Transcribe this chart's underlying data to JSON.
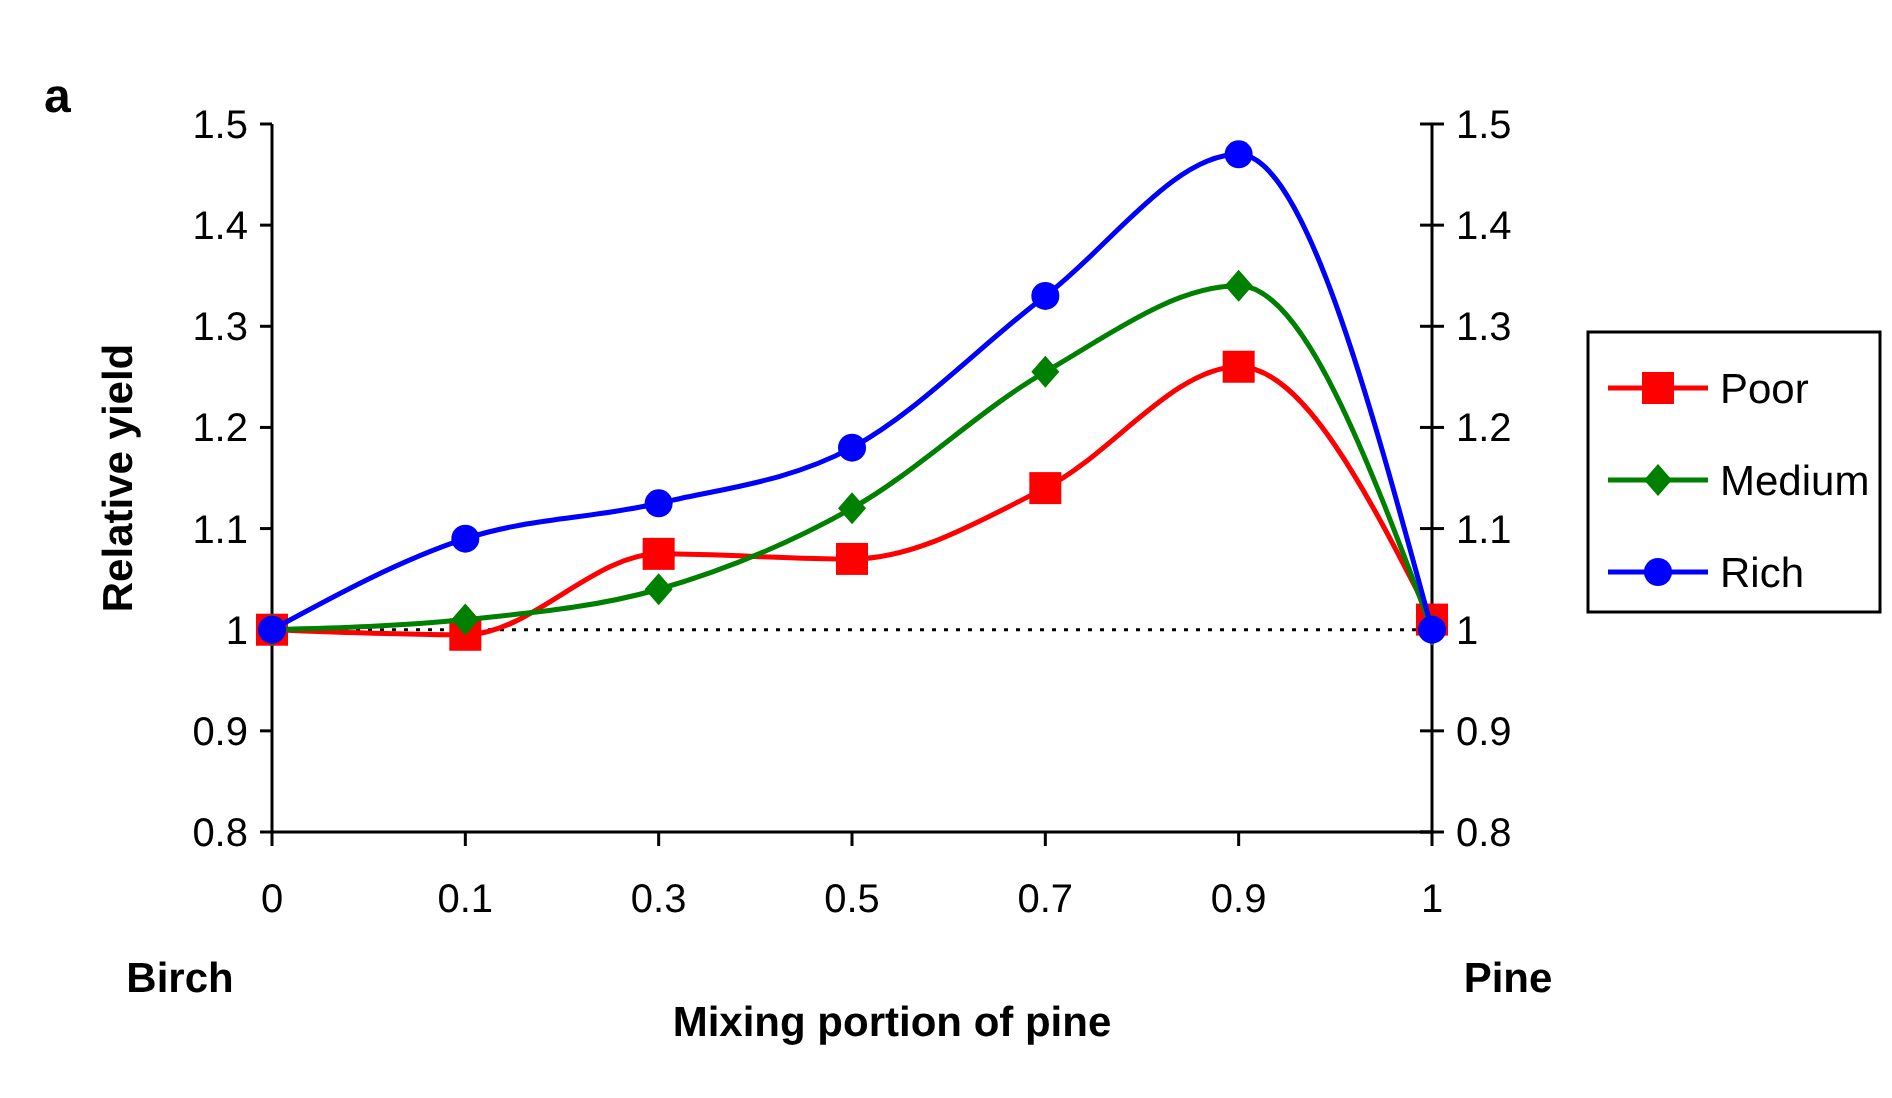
{
  "chart_data": {
    "type": "line",
    "xlabel": "Mixing portion of pine",
    "ylabel": "Relative yield",
    "categories": [
      "0",
      "0.1",
      "0.3",
      "0.5",
      "0.7",
      "0.9",
      "1"
    ],
    "series": [
      {
        "name": "Poor",
        "color": "#ff0000",
        "marker": "square",
        "values": [
          1.0,
          0.995,
          1.075,
          1.07,
          1.14,
          1.26,
          1.01
        ]
      },
      {
        "name": "Medium",
        "color": "#008000",
        "marker": "diamond",
        "values": [
          1.0,
          1.01,
          1.04,
          1.12,
          1.255,
          1.34,
          1.0
        ]
      },
      {
        "name": "Rich",
        "color": "#0000ff",
        "marker": "circle",
        "values": [
          1.0,
          1.09,
          1.125,
          1.18,
          1.33,
          1.47,
          1.0
        ]
      }
    ],
    "ylim": [
      0.8,
      1.5
    ],
    "yticks": [
      0.8,
      0.9,
      1,
      1.1,
      1.2,
      1.3,
      1.4,
      1.5
    ],
    "y2lim": [
      0.8,
      1.5
    ],
    "y2ticks": [
      0.8,
      0.9,
      1,
      1.1,
      1.2,
      1.3,
      1.4,
      1.5
    ],
    "ref_lines": [
      {
        "axis": "y",
        "value": 1,
        "color": "#000000",
        "line_style": "dotted"
      }
    ],
    "annotations": [
      "a",
      "Birch",
      "Pine"
    ],
    "grid": false,
    "legend": "right",
    "line_style": "solid"
  }
}
